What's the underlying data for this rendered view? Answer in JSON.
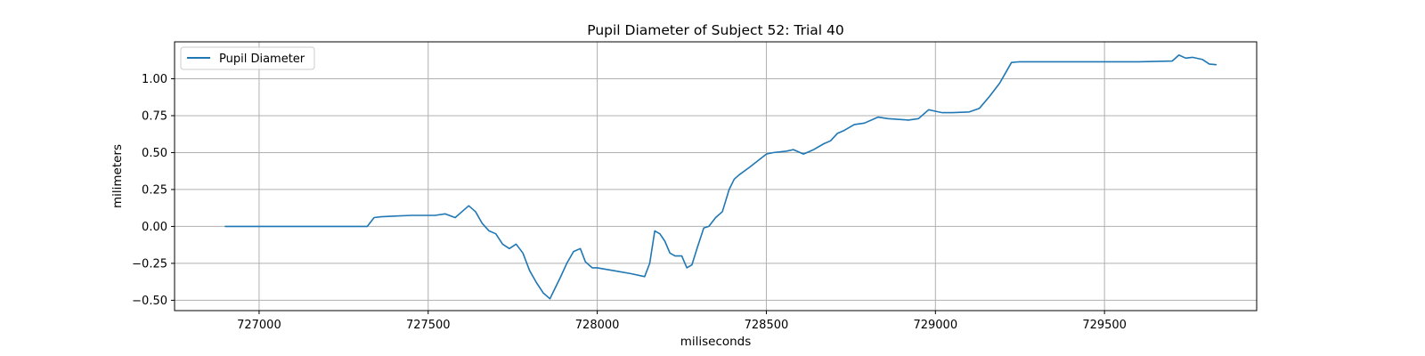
{
  "chart_data": {
    "type": "line",
    "title": "Pupil Diameter of Subject 52: Trial 40",
    "xlabel": "miliseconds",
    "ylabel": "milimeters",
    "xlim": [
      726750,
      729950
    ],
    "ylim": [
      -0.57,
      1.25
    ],
    "xticks": [
      727000,
      727500,
      728000,
      728500,
      729000,
      729500
    ],
    "yticks": [
      -0.5,
      -0.25,
      0.0,
      0.25,
      0.5,
      0.75,
      1.0
    ],
    "xtick_labels": [
      "727000",
      "727500",
      "728000",
      "728500",
      "729000",
      "729500"
    ],
    "ytick_labels": [
      "−0.50",
      "−0.25",
      "0.00",
      "0.25",
      "0.50",
      "0.75",
      "1.00"
    ],
    "grid": true,
    "legend": {
      "position": "top-left",
      "entries": [
        "Pupil Diameter"
      ]
    },
    "series": [
      {
        "name": "Pupil Diameter",
        "color": "#1f77b4",
        "x": [
          726900,
          727000,
          727200,
          727320,
          727340,
          727360,
          727400,
          727450,
          727520,
          727550,
          727580,
          727600,
          727620,
          727640,
          727660,
          727680,
          727700,
          727720,
          727740,
          727760,
          727780,
          727800,
          727820,
          727840,
          727860,
          727875,
          727890,
          727910,
          727930,
          727950,
          727965,
          727985,
          728000,
          728050,
          728100,
          728140,
          728155,
          728170,
          728185,
          728200,
          728215,
          728230,
          728250,
          728265,
          728280,
          728295,
          728315,
          728330,
          728350,
          728370,
          728390,
          728405,
          728420,
          728450,
          728500,
          728520,
          728560,
          728580,
          728610,
          728640,
          728670,
          728690,
          728710,
          728730,
          728760,
          728790,
          728830,
          728860,
          728920,
          728950,
          728980,
          729000,
          729020,
          729050,
          729100,
          729130,
          729160,
          729190,
          729210,
          729225,
          729250,
          729400,
          729600,
          729700,
          729720,
          729740,
          729760,
          729790,
          729810,
          729830
        ],
        "y": [
          0.0,
          0.0,
          0.0,
          0.0,
          0.06,
          0.065,
          0.07,
          0.075,
          0.075,
          0.085,
          0.06,
          0.1,
          0.14,
          0.1,
          0.02,
          -0.03,
          -0.05,
          -0.12,
          -0.15,
          -0.12,
          -0.18,
          -0.3,
          -0.38,
          -0.45,
          -0.49,
          -0.42,
          -0.35,
          -0.25,
          -0.17,
          -0.15,
          -0.24,
          -0.28,
          -0.28,
          -0.3,
          -0.32,
          -0.34,
          -0.25,
          -0.03,
          -0.05,
          -0.1,
          -0.18,
          -0.2,
          -0.2,
          -0.28,
          -0.26,
          -0.15,
          -0.01,
          0.0,
          0.06,
          0.1,
          0.25,
          0.32,
          0.35,
          0.4,
          0.49,
          0.5,
          0.51,
          0.52,
          0.49,
          0.52,
          0.56,
          0.58,
          0.63,
          0.65,
          0.69,
          0.7,
          0.74,
          0.73,
          0.72,
          0.73,
          0.79,
          0.78,
          0.77,
          0.77,
          0.775,
          0.8,
          0.88,
          0.97,
          1.05,
          1.11,
          1.115,
          1.115,
          1.115,
          1.12,
          1.16,
          1.14,
          1.145,
          1.13,
          1.1,
          1.095
        ]
      }
    ]
  }
}
